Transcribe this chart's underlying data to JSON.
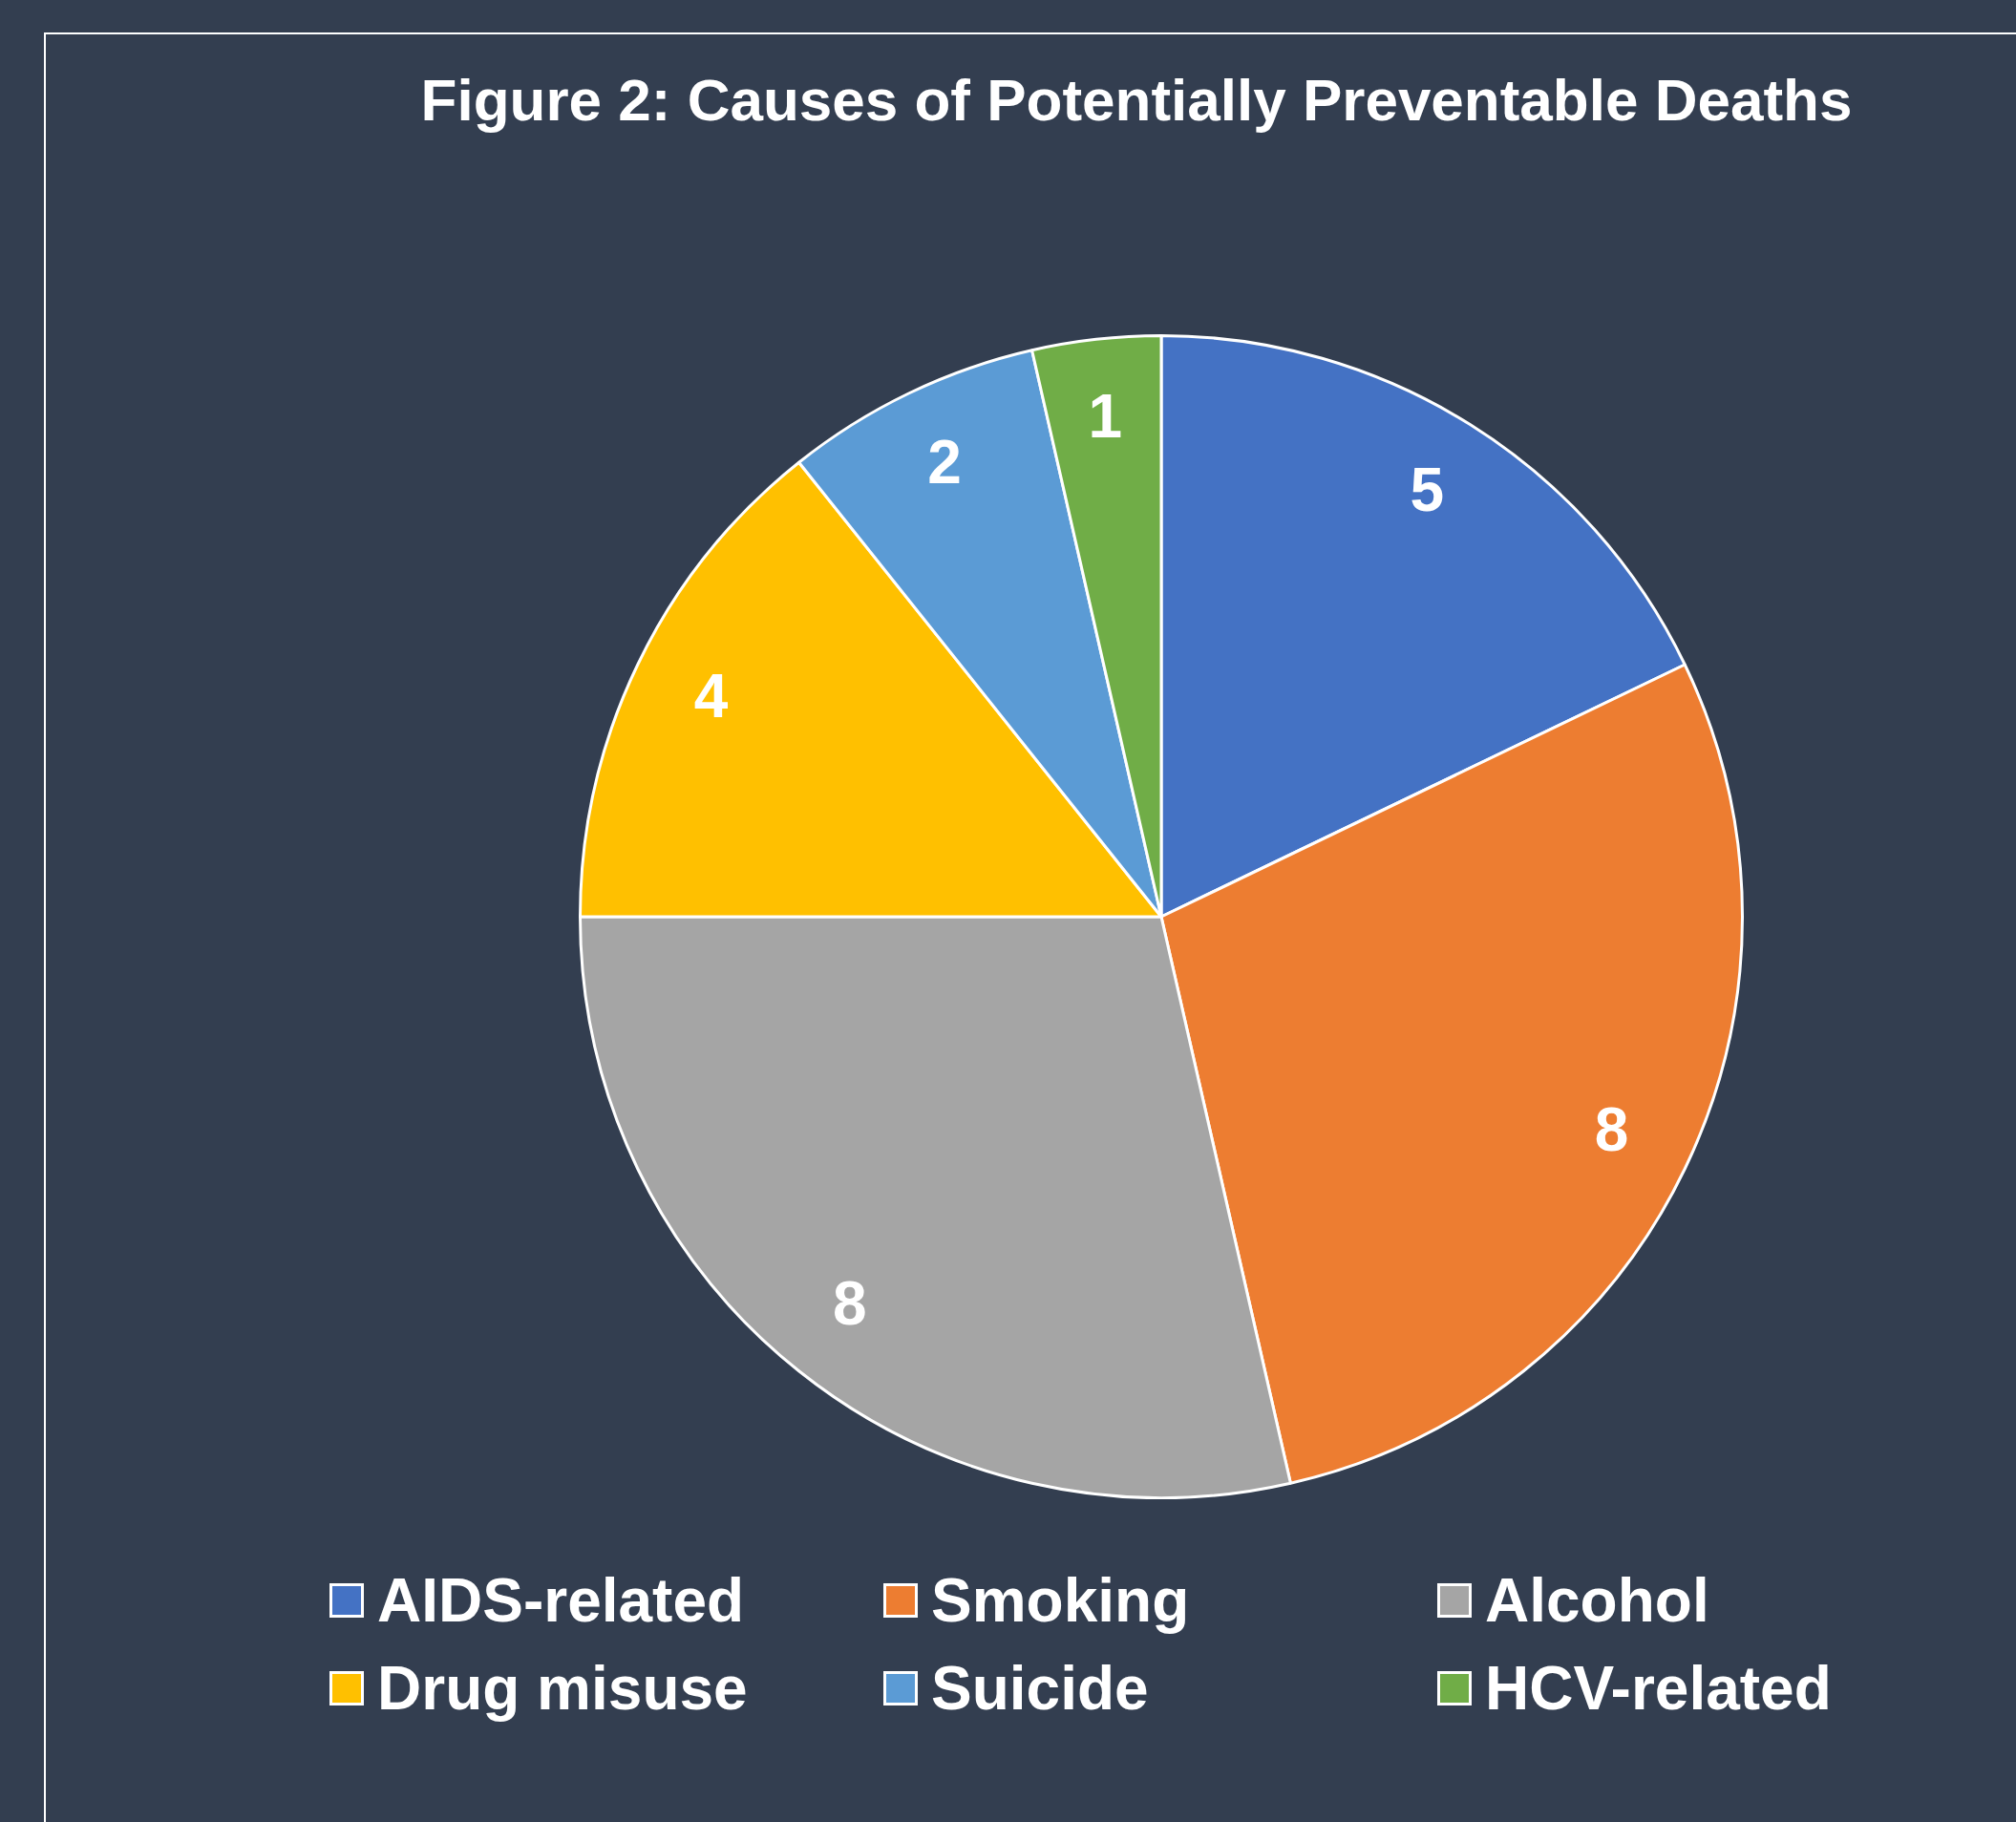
{
  "chart_data": {
    "type": "pie",
    "title": "Figure 2: Causes of Potentially Preventable Deaths",
    "categories": [
      "AIDS-related",
      "Smoking",
      "Alcohol",
      "Drug misuse",
      "Suicide",
      "HCV-related"
    ],
    "values": [
      5,
      8,
      8,
      4,
      2,
      1
    ],
    "colors": [
      "#4472c4",
      "#ed7d31",
      "#a5a5a5",
      "#ffc000",
      "#5b9bd5",
      "#70ad47"
    ],
    "data_labels": true,
    "legend": "bottom"
  }
}
